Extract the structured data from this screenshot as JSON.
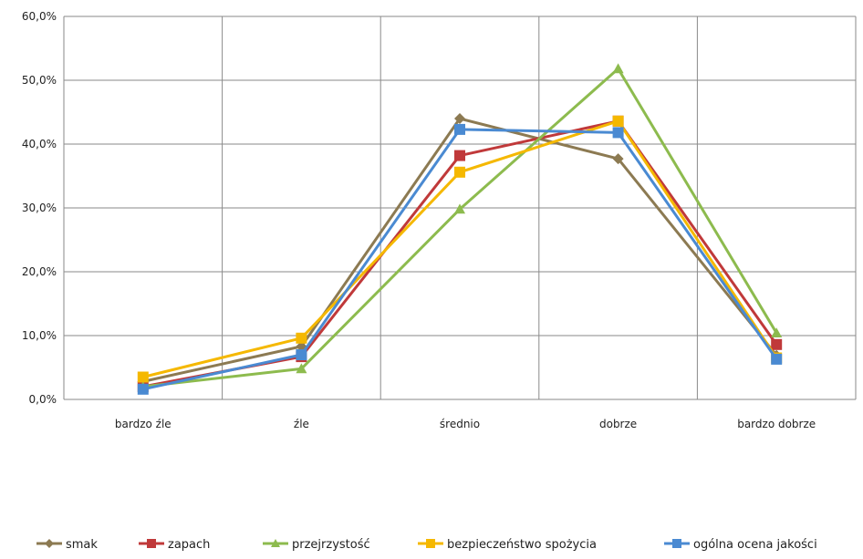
{
  "chart_data": {
    "type": "line",
    "categories": [
      "bardzo źle",
      "źle",
      "średnio",
      "dobrze",
      "bardzo dobrze"
    ],
    "y_ticks": [
      "0,0%",
      "10,0%",
      "20,0%",
      "30,0%",
      "40,0%",
      "50,0%",
      "60,0%"
    ],
    "ylim": [
      0,
      60
    ],
    "grid": true,
    "legend_position": "bottom",
    "series": [
      {
        "name": "smak",
        "marker": "diamond",
        "color": "#8c7a52",
        "values": [
          2.8,
          8.3,
          44.0,
          37.7,
          6.9
        ]
      },
      {
        "name": "zapach",
        "marker": "square",
        "color": "#c0393a",
        "values": [
          2.0,
          6.7,
          38.2,
          43.6,
          8.6
        ]
      },
      {
        "name": "przejrzystość",
        "marker": "triangle",
        "color": "#8dbb4e",
        "values": [
          2.0,
          4.8,
          29.8,
          51.8,
          10.4
        ]
      },
      {
        "name": "bezpieczeństwo spożycia",
        "marker": "square",
        "color": "#f5b800",
        "values": [
          3.5,
          9.6,
          35.6,
          43.6,
          6.5
        ]
      },
      {
        "name": "ogólna ocena jakości",
        "marker": "square",
        "color": "#4a8ad2",
        "values": [
          1.6,
          7.0,
          42.3,
          41.8,
          6.3
        ]
      }
    ]
  }
}
